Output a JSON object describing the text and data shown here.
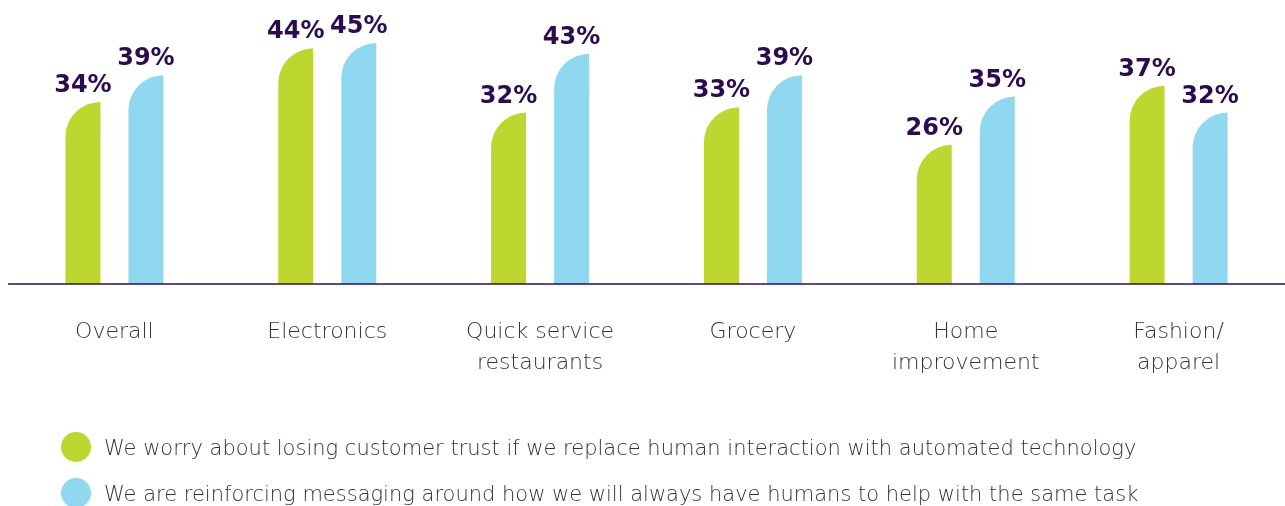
{
  "chart_data": {
    "type": "bar",
    "categories": [
      "Overall",
      "Electronics",
      "Quick service restaurants",
      "Grocery",
      "Home improvement",
      "Fashion/ apparel"
    ],
    "series": [
      {
        "name": "We worry about losing customer trust if we replace human interaction with automated technology",
        "color": "#bed630",
        "values": [
          34,
          44,
          32,
          33,
          26,
          37
        ],
        "value_labels": [
          "34%",
          "44%",
          "32%",
          "33%",
          "26%",
          "37%"
        ]
      },
      {
        "name": "We are reinforcing messaging around how we will always have humans to help with the same task",
        "color": "#90d8ef",
        "values": [
          39,
          45,
          43,
          39,
          35,
          32
        ],
        "value_labels": [
          "39%",
          "45%",
          "43%",
          "39%",
          "35%",
          "32%"
        ]
      }
    ],
    "legend": "bottom"
  }
}
